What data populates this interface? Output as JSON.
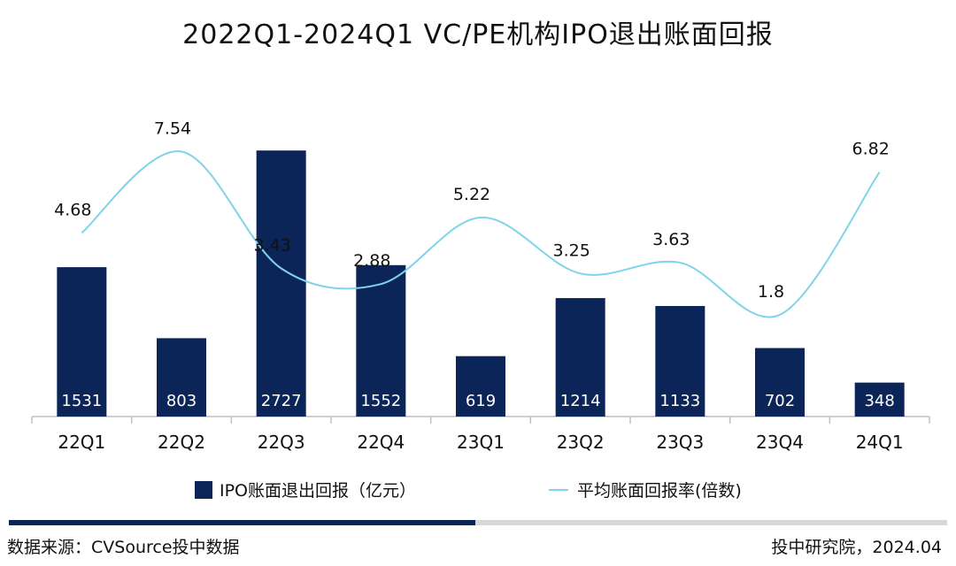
{
  "chart_data": {
    "type": "bar",
    "title": "2022Q1-2024Q1  VC/PE机构IPO退出账面回报",
    "categories": [
      "22Q1",
      "22Q2",
      "22Q3",
      "22Q4",
      "23Q1",
      "23Q2",
      "23Q3",
      "23Q4",
      "24Q1"
    ],
    "series": [
      {
        "name": "IPO账面退出回报（亿元）",
        "type": "bar",
        "values": [
          1531,
          803,
          2727,
          1552,
          619,
          1214,
          1133,
          702,
          348
        ],
        "labels": [
          "1531",
          "803",
          "2727",
          "1552",
          "619",
          "1214",
          "1133",
          "702",
          "348"
        ],
        "color": "#0b2559",
        "axis": "left"
      },
      {
        "name": "平均账面回报率(倍数)",
        "type": "line",
        "smooth": true,
        "values": [
          4.68,
          7.54,
          3.43,
          2.88,
          5.22,
          3.25,
          3.63,
          1.8,
          6.82
        ],
        "labels": [
          "4.68",
          "7.54",
          "3.43",
          "2.88",
          "5.22",
          "3.25",
          "3.63",
          "1.8",
          "6.82"
        ],
        "color": "#7fd3ea",
        "axis": "right"
      }
    ],
    "bar_axis": {
      "min": 0,
      "max": 3200
    },
    "line_axis": {
      "min": -1.78,
      "max": 9.2
    },
    "legend_position": "bottom",
    "grid": false
  },
  "footer": {
    "source": "数据来源：CVSource投中数据",
    "credit": "投中研究院，2024.04",
    "rule_color": "#d8d8d8",
    "rule_accent_color": "#0b2559"
  }
}
